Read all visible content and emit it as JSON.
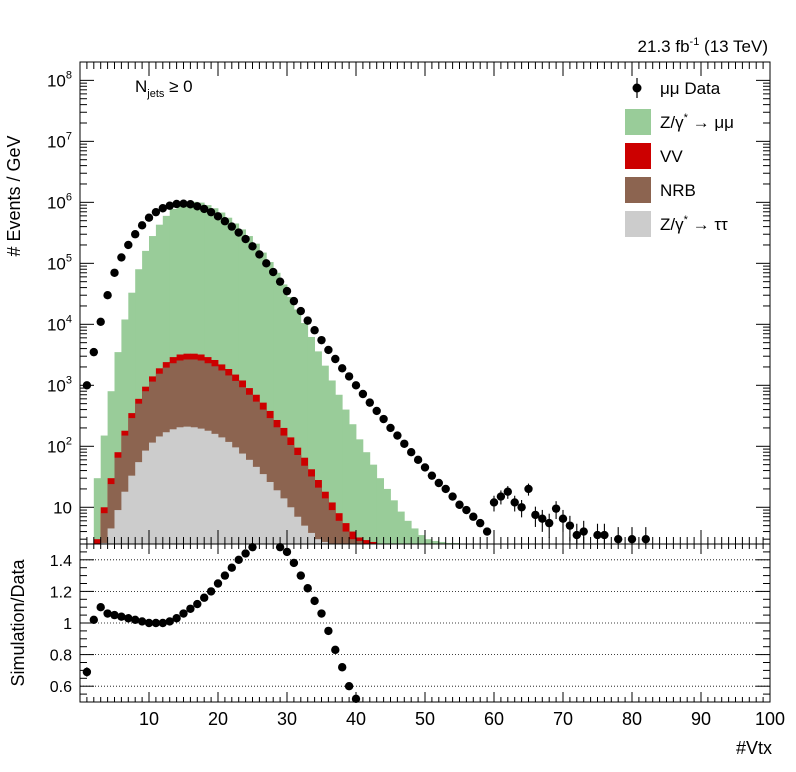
{
  "chart_data": [
    {
      "type": "bar",
      "subtype": "stacked-histogram-with-data-points",
      "y_scale": "log",
      "xlim": [
        0,
        100
      ],
      "ylim": [
        2.5,
        200000000
      ],
      "yticks": [
        10,
        100,
        1000,
        10000,
        100000,
        1000000,
        10000000,
        100000000
      ],
      "ylabel": "# Events / GeV",
      "luminosity_label": {
        "prefix": "21.3 fb",
        "superscript": "-1",
        "suffix": " (13 TeV)"
      },
      "annotation": {
        "text": "N",
        "subscript": "jets",
        "tail": " ≥ 0"
      },
      "legend_position": "top-right",
      "colors": {
        "zmumu": "#99cc99",
        "vv": "#cc0000",
        "nrb": "#8c6450",
        "ztautau": "#cccccc",
        "data": "#000000"
      },
      "legend": [
        {
          "key": "data",
          "label": "μμ Data"
        },
        {
          "key": "zmumu",
          "label_main": "Z/γ",
          "label_sup": "*",
          "label_tail": " → μμ"
        },
        {
          "key": "vv",
          "label": "VV"
        },
        {
          "key": "nrb",
          "label": "NRB"
        },
        {
          "key": "ztautau",
          "label_main": "Z/γ",
          "label_sup": "*",
          "label_tail": " → ττ"
        }
      ],
      "stack_bins": {
        "x_start": 0,
        "bin_width": 1,
        "zmumu_total": [
          0,
          2,
          30,
          150,
          800,
          3500,
          12000,
          33000,
          80000,
          160000,
          280000,
          430000,
          600000,
          780000,
          930000,
          1000000,
          1020000,
          990000,
          900000,
          800000,
          680000,
          560000,
          450000,
          360000,
          280000,
          210000,
          150000,
          105000,
          70000,
          45000,
          28000,
          17500,
          10500,
          6200,
          3600,
          2100,
          1200,
          700,
          400,
          230,
          130,
          80,
          50,
          30,
          20,
          13,
          8.5,
          6,
          4.5,
          3.5,
          3,
          2.8,
          2.7,
          2.6,
          2.6
        ],
        "vv_total": [
          0,
          0,
          3,
          10,
          30,
          80,
          180,
          350,
          600,
          950,
          1400,
          1900,
          2400,
          2900,
          3200,
          3300,
          3300,
          3200,
          2900,
          2600,
          2200,
          1850,
          1500,
          1200,
          900,
          700,
          520,
          380,
          270,
          200,
          140,
          95,
          65,
          42,
          28,
          18,
          12,
          8,
          5.5,
          4,
          3.2,
          2.9,
          2.7
        ],
        "nrb_total": [
          0,
          0,
          2,
          8,
          24,
          65,
          150,
          290,
          500,
          800,
          1150,
          1550,
          1950,
          2300,
          2550,
          2650,
          2650,
          2550,
          2300,
          2050,
          1750,
          1450,
          1180,
          930,
          700,
          540,
          400,
          290,
          205,
          150,
          105,
          72,
          48,
          32,
          21,
          14,
          9,
          6,
          4,
          3,
          2.8
        ],
        "ztautau": [
          0,
          0,
          0,
          2.6,
          4.5,
          9,
          18,
          33,
          55,
          85,
          115,
          145,
          170,
          190,
          205,
          210,
          205,
          195,
          180,
          160,
          140,
          118,
          96,
          76,
          60,
          46,
          35,
          26,
          19,
          14,
          10,
          7,
          5,
          3.8,
          3,
          2.7
        ]
      },
      "data_points": {
        "x": [
          1,
          2,
          3,
          4,
          5,
          6,
          7,
          8,
          9,
          10,
          11,
          12,
          13,
          14,
          15,
          16,
          17,
          18,
          19,
          20,
          21,
          22,
          23,
          24,
          25,
          26,
          27,
          28,
          29,
          30,
          31,
          32,
          33,
          34,
          35,
          36,
          37,
          38,
          39,
          40,
          41,
          42,
          43,
          44,
          45,
          46,
          47,
          48,
          49,
          50,
          51,
          52,
          53,
          54,
          55,
          56,
          57,
          58,
          59,
          60,
          61,
          62,
          63,
          64,
          65,
          66,
          67,
          68,
          69,
          70,
          71,
          72,
          73,
          75,
          76,
          78,
          80,
          82
        ],
        "y": [
          1000,
          3500,
          11000,
          30000,
          70000,
          125000,
          200000,
          300000,
          420000,
          560000,
          690000,
          800000,
          880000,
          940000,
          950000,
          930000,
          860000,
          780000,
          690000,
          590000,
          490000,
          400000,
          320000,
          250000,
          190000,
          140000,
          100000,
          72000,
          50000,
          35000,
          24000,
          16500,
          11500,
          8000,
          5500,
          3800,
          2700,
          1900,
          1400,
          1000,
          720,
          520,
          380,
          280,
          200,
          150,
          110,
          80,
          60,
          45,
          33,
          25,
          20,
          15,
          11,
          9,
          7,
          5.5,
          4,
          12,
          15,
          18,
          12,
          10,
          20,
          7.5,
          6.5,
          5.5,
          9.5,
          6.5,
          5,
          3.5,
          4,
          3.5,
          3.5,
          3,
          3,
          3
        ],
        "error_bars_from_x": 60
      }
    },
    {
      "type": "scatter",
      "panel": "ratio",
      "ylabel": "Simulation/Data",
      "xlabel": "#Vtx",
      "xlim": [
        0,
        100
      ],
      "ylim": [
        0.5,
        1.5
      ],
      "yticks": [
        0.6,
        0.8,
        1,
        1.2,
        1.4
      ],
      "xticks": [
        10,
        20,
        30,
        40,
        50,
        60,
        70,
        80,
        90,
        100
      ],
      "gridlines_y": [
        0.6,
        0.8,
        1,
        1.2,
        1.4
      ],
      "x": [
        1,
        2,
        3,
        4,
        5,
        6,
        7,
        8,
        9,
        10,
        11,
        12,
        13,
        14,
        15,
        16,
        17,
        18,
        19,
        20,
        21,
        22,
        23,
        24,
        25,
        29,
        30,
        31,
        32,
        33,
        34,
        35,
        36,
        37,
        38,
        39,
        40
      ],
      "y": [
        0.69,
        1.02,
        1.1,
        1.06,
        1.05,
        1.04,
        1.03,
        1.02,
        1.01,
        1.0,
        1.0,
        1.0,
        1.01,
        1.03,
        1.06,
        1.09,
        1.12,
        1.16,
        1.2,
        1.25,
        1.3,
        1.35,
        1.4,
        1.44,
        1.48,
        1.48,
        1.45,
        1.38,
        1.3,
        1.22,
        1.14,
        1.06,
        0.95,
        0.83,
        0.72,
        0.6,
        0.52
      ]
    }
  ]
}
